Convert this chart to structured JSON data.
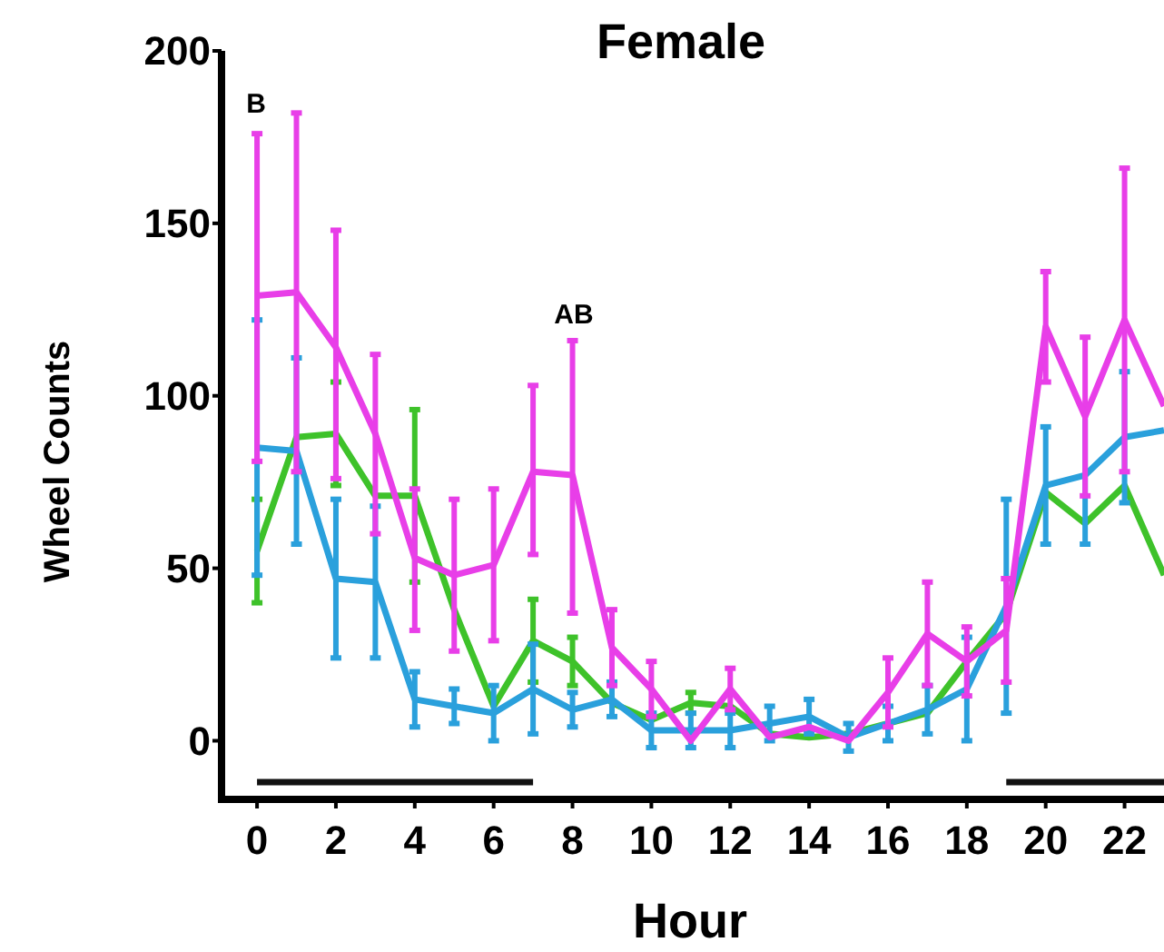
{
  "chart_data": {
    "type": "line",
    "title": "Female",
    "xlabel": "Hour",
    "ylabel": "Wheel Counts",
    "x": [
      0,
      1,
      2,
      3,
      4,
      5,
      6,
      7,
      8,
      9,
      10,
      11,
      12,
      13,
      14,
      15,
      16,
      17,
      18,
      19,
      20,
      21,
      22,
      23
    ],
    "series": [
      {
        "color": "#3ec22a",
        "values": [
          55,
          88,
          89,
          71,
          71,
          38,
          10,
          29,
          23,
          11,
          6,
          11,
          10,
          2,
          1,
          2,
          5,
          8,
          23,
          37,
          72,
          63,
          74,
          48
        ],
        "errors": [
          15,
          null,
          15,
          null,
          25,
          null,
          null,
          12,
          7,
          null,
          null,
          3,
          null,
          null,
          null,
          null,
          null,
          null,
          null,
          null,
          null,
          null,
          null,
          null
        ]
      },
      {
        "color": "#2aa0dc",
        "values": [
          85,
          84,
          47,
          46,
          12,
          10,
          8,
          15,
          9,
          12,
          3,
          3,
          3,
          5,
          7,
          1,
          5,
          9,
          15,
          39,
          74,
          77,
          88,
          90
        ],
        "errors": [
          37,
          27,
          23,
          22,
          8,
          5,
          8,
          13,
          5,
          5,
          5,
          5,
          5,
          5,
          5,
          4,
          5,
          7,
          15,
          31,
          17,
          20,
          19,
          null
        ]
      },
      {
        "color": "#111111",
        "x": [
          0,
          7,
          13,
          19,
          23
        ],
        "values": [
          -12,
          -12,
          null,
          -12,
          -12
        ]
      },
      {
        "color": "#e83ee8",
        "values": [
          129,
          130,
          114,
          89,
          53,
          48,
          51,
          78,
          77,
          27,
          15,
          0,
          15,
          1,
          4,
          0,
          14,
          31,
          23,
          32,
          120,
          94,
          122,
          97
        ],
        "errors": [
          [
            81,
            176
          ],
          [
            78,
            182
          ],
          [
            76,
            148
          ],
          [
            60,
            112
          ],
          [
            32,
            73
          ],
          [
            26,
            70
          ],
          [
            29,
            73
          ],
          [
            54,
            103
          ],
          [
            37,
            116
          ],
          11,
          8,
          null,
          6,
          null,
          null,
          null,
          10,
          15,
          10,
          15,
          16,
          23,
          44,
          null
        ]
      }
    ],
    "xlim": [
      -0.9,
      23
    ],
    "ylim": [
      -17,
      200
    ],
    "xticks": [
      0,
      2,
      4,
      6,
      8,
      10,
      12,
      14,
      16,
      18,
      20,
      22
    ],
    "yticks": [
      0,
      50,
      100,
      150,
      200
    ],
    "annotations": [
      "B",
      "AB"
    ],
    "grid": false,
    "marker": "none",
    "line_style": "solid"
  }
}
